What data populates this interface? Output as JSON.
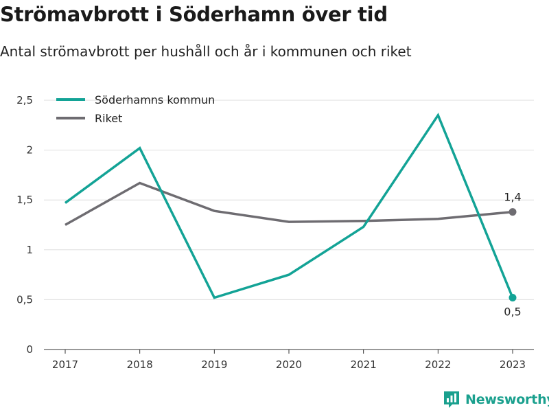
{
  "header": {
    "title": "Strömavbrott i Söderhamn över tid",
    "subtitle": "Antal strömavbrott per hushåll och år i kommunen och riket"
  },
  "brand": {
    "name": "Newsworthy",
    "icon": "newsworthy-logo-icon",
    "color": "#1aa08e"
  },
  "chart_data": {
    "type": "line",
    "x": [
      "2017",
      "2018",
      "2019",
      "2020",
      "2021",
      "2022",
      "2023"
    ],
    "ylim": [
      0,
      2.5
    ],
    "yticks": [
      0,
      0.5,
      1,
      1.5,
      2,
      2.5
    ],
    "ytick_labels": [
      "0",
      "0,5",
      "1",
      "1,5",
      "2",
      "2,5"
    ],
    "grid": true,
    "legend": "top-left",
    "series": [
      {
        "name": "Söderhamns kommun",
        "color": "#13a396",
        "values": [
          1.47,
          2.02,
          0.52,
          0.75,
          1.23,
          2.35,
          0.52
        ],
        "end_label": "0,5",
        "end_label_position": "below"
      },
      {
        "name": "Riket",
        "color": "#6e6c71",
        "values": [
          1.25,
          1.67,
          1.39,
          1.28,
          1.29,
          1.31,
          1.38
        ],
        "end_label": "1,4",
        "end_label_position": "above"
      }
    ]
  }
}
